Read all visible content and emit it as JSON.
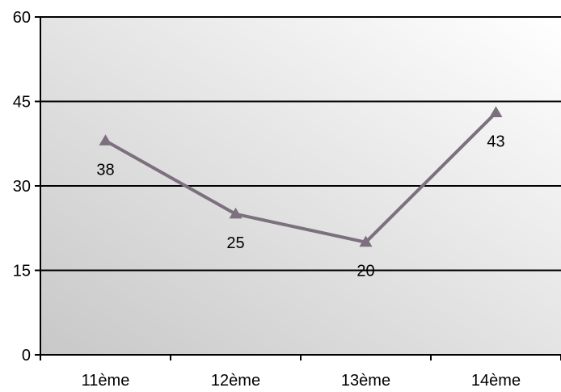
{
  "chart_data": {
    "type": "line",
    "categories": [
      "11ème",
      "12ème",
      "13ème",
      "14ème"
    ],
    "series": [
      {
        "values": [
          38,
          25,
          20,
          43
        ]
      }
    ],
    "ylim": [
      0,
      60
    ],
    "yticks": [
      0,
      15,
      30,
      45,
      60
    ],
    "grid": true,
    "legend": "none",
    "data_labels": [
      "38",
      "25",
      "20",
      "43"
    ],
    "colors": {
      "line": "#7c6f7e",
      "gridline": "#000000",
      "plot_bg_light": "#ffffff",
      "plot_bg_dark": "#c8c8c8"
    }
  }
}
